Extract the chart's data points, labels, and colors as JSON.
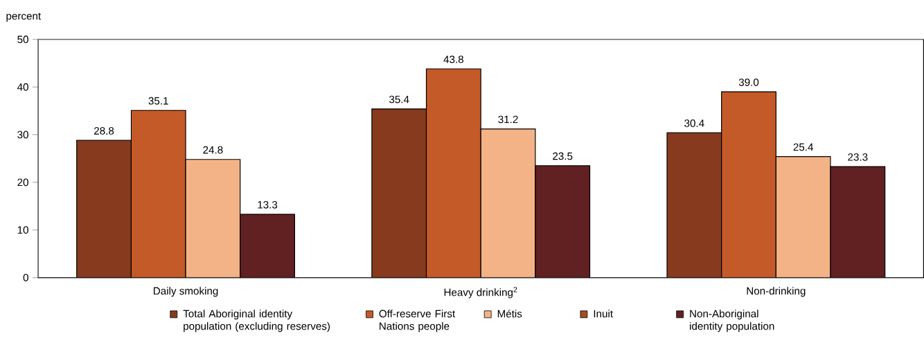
{
  "chart_data": {
    "type": "bar",
    "ylabel": "percent",
    "categories": [
      "Daily smoking",
      "Heavy drinking$^{2}$",
      "Non-drinking"
    ],
    "series": [
      {
        "name": "Total Aboriginal identity population (excluding reserves)",
        "color": "#873a1d",
        "values": [
          28.8,
          35.4,
          30.4
        ],
        "value_labels": [
          "28.8",
          "35.4",
          "30.4"
        ]
      },
      {
        "name": "Off-reserve First Nations people",
        "color": "#c45a28",
        "values": [
          35.1,
          43.8,
          39.0
        ],
        "value_labels": [
          "35.1",
          "43.8",
          "39.0"
        ]
      },
      {
        "name": "Métis",
        "color": "#f4b386",
        "values": [
          24.8,
          31.2,
          25.4
        ],
        "value_labels": [
          "24.8",
          "31.2",
          "25.4"
        ]
      },
      {
        "name": "Inuit",
        "color": "#a0501e",
        "values": [
          null,
          null,
          null
        ]
      },
      {
        "name": "Non-Aboriginal identity population",
        "color": "#612022",
        "values": [
          13.3,
          23.5,
          23.3
        ],
        "value_labels": [
          "13.3",
          "23.5",
          "23.3"
        ]
      }
    ],
    "ylim": [
      0,
      50
    ],
    "yticks": [
      0,
      10,
      20,
      30,
      40,
      50
    ],
    "grid": false,
    "legend": "bottom"
  }
}
